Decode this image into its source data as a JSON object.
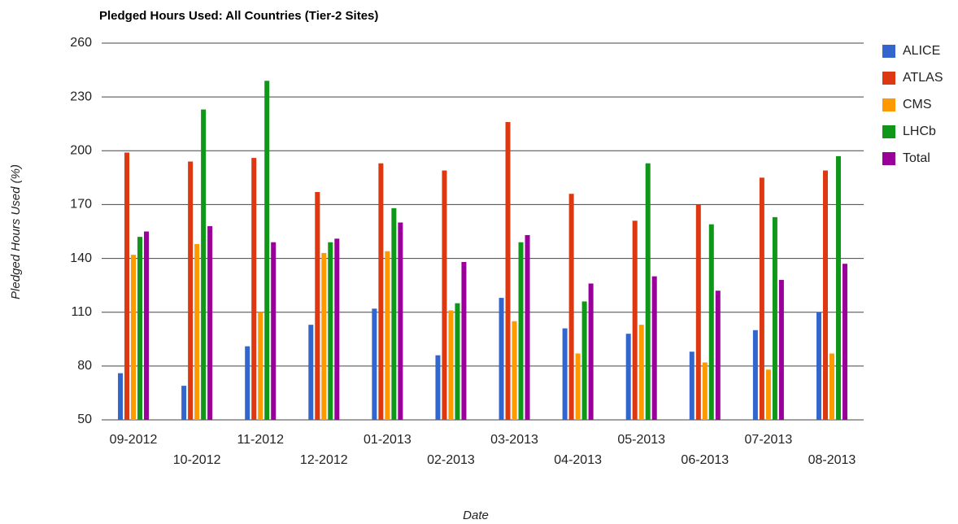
{
  "chart_data": {
    "type": "bar",
    "title": "Pledged Hours Used: All Countries (Tier-2 Sites)",
    "x_label": "Date",
    "y_label": "Pledged Hours Used (%)",
    "categories": [
      "09-2012",
      "10-2012",
      "11-2012",
      "12-2012",
      "01-2013",
      "02-2013",
      "03-2013",
      "04-2013",
      "05-2013",
      "06-2013",
      "07-2013",
      "08-2013"
    ],
    "series": [
      {
        "name": "ALICE",
        "color": "#3366cc",
        "values": [
          76,
          69,
          91,
          103,
          112,
          86,
          118,
          101,
          98,
          88,
          100,
          110
        ]
      },
      {
        "name": "ATLAS",
        "color": "#dc3912",
        "values": [
          199,
          194,
          196,
          177,
          193,
          189,
          216,
          176,
          161,
          170,
          185,
          189
        ]
      },
      {
        "name": "CMS",
        "color": "#ff9900",
        "values": [
          142,
          148,
          110,
          143,
          144,
          111,
          105,
          87,
          103,
          82,
          78,
          87
        ]
      },
      {
        "name": "LHCb",
        "color": "#109618",
        "values": [
          152,
          223,
          239,
          149,
          168,
          115,
          149,
          116,
          193,
          159,
          163,
          197
        ]
      },
      {
        "name": "Total",
        "color": "#990099",
        "values": [
          155,
          158,
          149,
          151,
          160,
          138,
          153,
          126,
          130,
          122,
          128,
          137
        ]
      }
    ],
    "ylim": [
      50,
      260
    ],
    "yticks": [
      50,
      80,
      110,
      140,
      170,
      200,
      230,
      260
    ],
    "grid": true,
    "legend": "right"
  }
}
